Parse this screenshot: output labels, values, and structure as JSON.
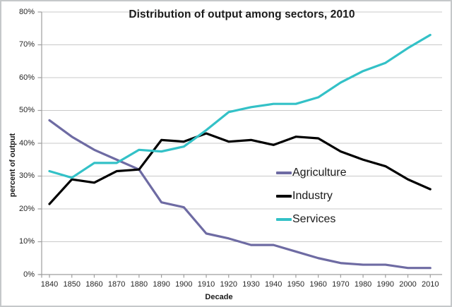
{
  "frame": {
    "background_color": "#ffffff",
    "border_color": "#c5c8ca"
  },
  "chart_data": {
    "type": "line",
    "title": "Distribution of output among sectors, 2010",
    "xlabel": "Decade",
    "ylabel": "percent of output",
    "x": [
      1840,
      1850,
      1860,
      1870,
      1880,
      1890,
      1900,
      1910,
      1920,
      1930,
      1940,
      1950,
      1960,
      1970,
      1980,
      1990,
      2000,
      2010
    ],
    "series": [
      {
        "name": "Agriculture",
        "color": "#6e6ba3",
        "values": [
          47,
          42,
          38,
          35,
          32,
          22,
          20.5,
          12.5,
          11,
          9,
          9,
          7,
          5,
          3.5,
          3,
          3,
          2,
          2
        ]
      },
      {
        "name": "Industry",
        "color": "#000000",
        "values": [
          21.5,
          29,
          28,
          31.5,
          32,
          41,
          40.5,
          43,
          40.5,
          41,
          39.5,
          42,
          41.5,
          37.5,
          35,
          33,
          29,
          26
        ]
      },
      {
        "name": "Services",
        "color": "#33c1c7",
        "values": [
          31.5,
          29.5,
          34,
          34,
          38,
          37.5,
          39,
          44,
          49.5,
          51,
          52,
          52,
          54,
          58.5,
          62,
          64.5,
          69,
          73
        ]
      }
    ],
    "ylim": [
      0,
      80
    ],
    "ytick_step": 10,
    "ytick_labels": [
      "0%",
      "10%",
      "20%",
      "30%",
      "40%",
      "50%",
      "60%",
      "70%",
      "80%"
    ],
    "grid": true,
    "gridline_color": "#c9c9c9",
    "axis_color": "#9e9e9e",
    "legend_position": "inside-right-center",
    "line_width": 3.2
  }
}
